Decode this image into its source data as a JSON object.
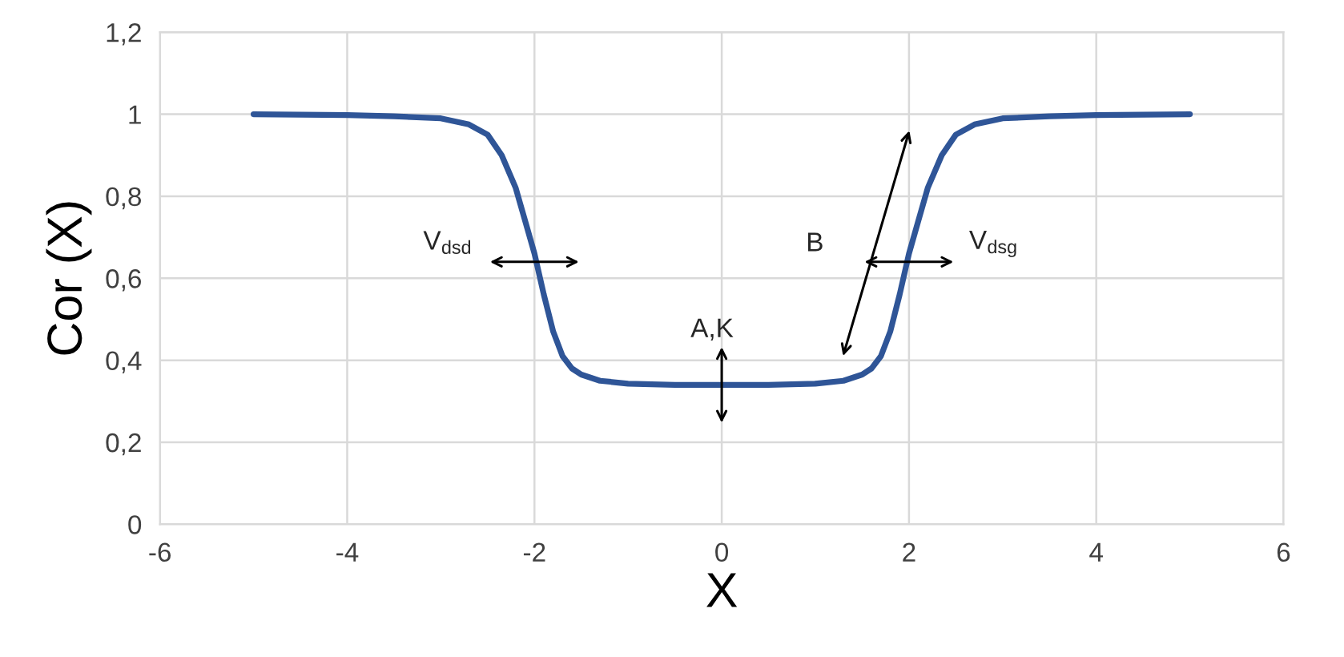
{
  "chart_data": {
    "type": "line",
    "xlabel": "X",
    "ylabel": "Cor (X)",
    "x": [
      -5,
      -4,
      -3.5,
      -3,
      -2.7,
      -2.5,
      -2.35,
      -2.2,
      -2.1,
      -2.0,
      -1.9,
      -1.8,
      -1.7,
      -1.6,
      -1.5,
      -1.3,
      -1,
      -0.5,
      0,
      0.5,
      1,
      1.3,
      1.5,
      1.6,
      1.7,
      1.8,
      1.9,
      2.0,
      2.1,
      2.2,
      2.35,
      2.5,
      2.7,
      3,
      3.5,
      4,
      5
    ],
    "series": [
      {
        "color": "#2f5597",
        "values": [
          1,
          0.998,
          0.995,
          0.99,
          0.975,
          0.95,
          0.9,
          0.82,
          0.74,
          0.66,
          0.56,
          0.47,
          0.41,
          0.38,
          0.365,
          0.35,
          0.343,
          0.34,
          0.34,
          0.34,
          0.343,
          0.35,
          0.365,
          0.38,
          0.41,
          0.47,
          0.56,
          0.66,
          0.74,
          0.82,
          0.9,
          0.95,
          0.975,
          0.99,
          0.995,
          0.998,
          1
        ]
      }
    ],
    "xlim": [
      -6,
      6
    ],
    "xticks": [
      -6,
      -4,
      -2,
      0,
      2,
      4,
      6
    ],
    "ylim": [
      0,
      1.2
    ],
    "yticks": [
      0,
      {
        "value": 0.2,
        "label": "0,2"
      },
      {
        "value": 0.4,
        "label": "0,4"
      },
      {
        "value": 0.6,
        "label": "0,6"
      },
      {
        "value": 0.8,
        "label": "0,8"
      },
      1,
      {
        "value": 1.2,
        "label": "1,2"
      }
    ],
    "grid": true,
    "marker": "none",
    "line_style": "solid",
    "annotations": [
      {
        "text": "V$_{dsd}$",
        "x": -2,
        "y": 0.64
      },
      {
        "text": "A,K",
        "x": 0,
        "y": 0.34
      },
      "B",
      {
        "text": "V$_{dsg}$",
        "x": 2,
        "y": 0.64
      }
    ]
  }
}
